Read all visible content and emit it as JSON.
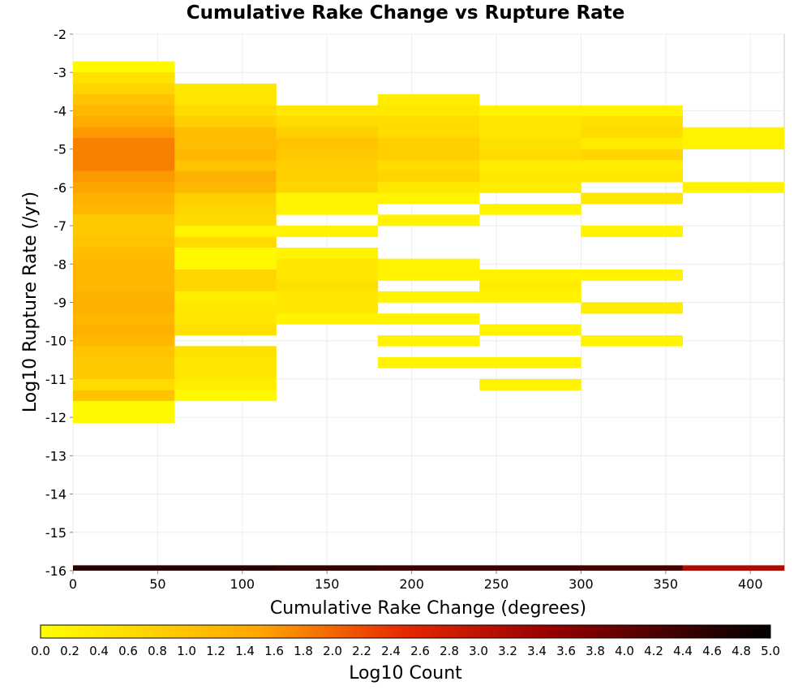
{
  "chart_data": {
    "type": "heatmap",
    "title": "Cumulative Rake Change vs Rupture Rate",
    "xlabel": "Cumulative Rake Change (degrees)",
    "ylabel": "Log10 Rupture Rate (/yr)",
    "xlim": [
      0,
      420
    ],
    "ylim": [
      -16,
      -2
    ],
    "x_ticks": [
      0,
      50,
      100,
      150,
      200,
      250,
      300,
      350,
      400
    ],
    "y_ticks": [
      -2,
      -3,
      -4,
      -5,
      -6,
      -7,
      -8,
      -9,
      -10,
      -11,
      -12,
      -13,
      -14,
      -15,
      -16
    ],
    "grid": true,
    "bin_width_x": 60,
    "bin_height_y": 0.2857,
    "colorbar": {
      "label": "Log10 Count",
      "range": [
        0.0,
        5.0
      ],
      "ticks": [
        "0.0",
        "0.2",
        "0.4",
        "0.6",
        "0.8",
        "1.0",
        "1.2",
        "1.4",
        "1.6",
        "1.8",
        "2.0",
        "2.2",
        "2.4",
        "2.6",
        "2.8",
        "3.0",
        "3.2",
        "3.4",
        "3.6",
        "3.8",
        "4.0",
        "4.2",
        "4.4",
        "4.6",
        "4.8",
        "5.0"
      ],
      "colormap": "yellow-orange-red-black"
    },
    "columns": [
      {
        "x_range": [
          0,
          60
        ],
        "cells": [
          {
            "y": [
              -3.0,
              -2.71
            ],
            "value": 0.1
          },
          {
            "y": [
              -3.29,
              -3.0
            ],
            "value": 0.5
          },
          {
            "y": [
              -3.57,
              -3.29
            ],
            "value": 0.7
          },
          {
            "y": [
              -3.86,
              -3.57
            ],
            "value": 1.0
          },
          {
            "y": [
              -4.14,
              -3.86
            ],
            "value": 1.2
          },
          {
            "y": [
              -4.43,
              -4.14
            ],
            "value": 1.4
          },
          {
            "y": [
              -4.71,
              -4.43
            ],
            "value": 1.6
          },
          {
            "y": [
              -5.0,
              -4.71
            ],
            "value": 1.8
          },
          {
            "y": [
              -5.29,
              -5.0
            ],
            "value": 1.8
          },
          {
            "y": [
              -5.57,
              -5.29
            ],
            "value": 1.8
          },
          {
            "y": [
              -5.86,
              -5.57
            ],
            "value": 1.6
          },
          {
            "y": [
              -6.14,
              -5.86
            ],
            "value": 1.5
          },
          {
            "y": [
              -6.43,
              -6.14
            ],
            "value": 1.3
          },
          {
            "y": [
              -6.71,
              -6.43
            ],
            "value": 1.2
          },
          {
            "y": [
              -7.0,
              -6.71
            ],
            "value": 0.9
          },
          {
            "y": [
              -7.29,
              -7.0
            ],
            "value": 0.9
          },
          {
            "y": [
              -7.57,
              -7.29
            ],
            "value": 1.0
          },
          {
            "y": [
              -7.86,
              -7.57
            ],
            "value": 1.1
          },
          {
            "y": [
              -8.14,
              -7.86
            ],
            "value": 1.2
          },
          {
            "y": [
              -8.43,
              -8.14
            ],
            "value": 1.2
          },
          {
            "y": [
              -8.71,
              -8.43
            ],
            "value": 1.2
          },
          {
            "y": [
              -9.0,
              -8.71
            ],
            "value": 1.3
          },
          {
            "y": [
              -9.29,
              -9.0
            ],
            "value": 1.3
          },
          {
            "y": [
              -9.57,
              -9.29
            ],
            "value": 1.2
          },
          {
            "y": [
              -9.86,
              -9.57
            ],
            "value": 1.3
          },
          {
            "y": [
              -10.14,
              -9.86
            ],
            "value": 1.2
          },
          {
            "y": [
              -10.43,
              -10.14
            ],
            "value": 1.0
          },
          {
            "y": [
              -10.71,
              -10.43
            ],
            "value": 0.9
          },
          {
            "y": [
              -11.0,
              -10.71
            ],
            "value": 0.9
          },
          {
            "y": [
              -11.29,
              -11.0
            ],
            "value": 0.6
          },
          {
            "y": [
              -11.57,
              -11.29
            ],
            "value": 1.0
          },
          {
            "y": [
              -11.86,
              -11.57
            ],
            "value": 0.1
          },
          {
            "y": [
              -12.14,
              -11.86
            ],
            "value": 0.1
          }
        ]
      },
      {
        "x_range": [
          60,
          120
        ],
        "cells": [
          {
            "y": [
              -3.57,
              -3.29
            ],
            "value": 0.4
          },
          {
            "y": [
              -3.86,
              -3.57
            ],
            "value": 0.4
          },
          {
            "y": [
              -4.14,
              -3.86
            ],
            "value": 0.6
          },
          {
            "y": [
              -4.43,
              -4.14
            ],
            "value": 0.8
          },
          {
            "y": [
              -4.71,
              -4.43
            ],
            "value": 1.1
          },
          {
            "y": [
              -5.0,
              -4.71
            ],
            "value": 1.1
          },
          {
            "y": [
              -5.29,
              -5.0
            ],
            "value": 1.2
          },
          {
            "y": [
              -5.57,
              -5.29
            ],
            "value": 1.0
          },
          {
            "y": [
              -5.86,
              -5.57
            ],
            "value": 1.3
          },
          {
            "y": [
              -6.14,
              -5.86
            ],
            "value": 1.2
          },
          {
            "y": [
              -6.43,
              -6.14
            ],
            "value": 0.8
          },
          {
            "y": [
              -6.71,
              -6.43
            ],
            "value": 0.7
          },
          {
            "y": [
              -7.0,
              -6.71
            ],
            "value": 0.6
          },
          {
            "y": [
              -7.29,
              -7.0
            ],
            "value": 0.2
          },
          {
            "y": [
              -7.57,
              -7.29
            ],
            "value": 0.6
          },
          {
            "y": [
              -7.86,
              -7.57
            ],
            "value": 0.1
          },
          {
            "y": [
              -8.14,
              -7.86
            ],
            "value": 0.1
          },
          {
            "y": [
              -8.43,
              -8.14
            ],
            "value": 0.7
          },
          {
            "y": [
              -8.71,
              -8.43
            ],
            "value": 0.7
          },
          {
            "y": [
              -9.0,
              -8.71
            ],
            "value": 0.3
          },
          {
            "y": [
              -9.29,
              -9.0
            ],
            "value": 0.4
          },
          {
            "y": [
              -9.57,
              -9.29
            ],
            "value": 0.4
          },
          {
            "y": [
              -9.86,
              -9.57
            ],
            "value": 0.5
          },
          {
            "y": [
              -10.43,
              -10.14
            ],
            "value": 0.5
          },
          {
            "y": [
              -10.71,
              -10.43
            ],
            "value": 0.4
          },
          {
            "y": [
              -11.0,
              -10.71
            ],
            "value": 0.4
          },
          {
            "y": [
              -11.29,
              -11.0
            ],
            "value": 0.3
          },
          {
            "y": [
              -11.57,
              -11.29
            ],
            "value": 0.1
          }
        ]
      },
      {
        "x_range": [
          120,
          180
        ],
        "cells": [
          {
            "y": [
              -4.14,
              -3.86
            ],
            "value": 0.4
          },
          {
            "y": [
              -4.43,
              -4.14
            ],
            "value": 0.6
          },
          {
            "y": [
              -4.71,
              -4.43
            ],
            "value": 0.8
          },
          {
            "y": [
              -5.0,
              -4.71
            ],
            "value": 1.0
          },
          {
            "y": [
              -5.29,
              -5.0
            ],
            "value": 0.9
          },
          {
            "y": [
              -5.57,
              -5.29
            ],
            "value": 0.8
          },
          {
            "y": [
              -5.86,
              -5.57
            ],
            "value": 0.8
          },
          {
            "y": [
              -6.14,
              -5.86
            ],
            "value": 0.7
          },
          {
            "y": [
              -6.43,
              -6.14
            ],
            "value": 0.2
          },
          {
            "y": [
              -6.71,
              -6.43
            ],
            "value": 0.2
          },
          {
            "y": [
              -7.29,
              -7.0
            ],
            "value": 0.2
          },
          {
            "y": [
              -7.86,
              -7.57
            ],
            "value": 0.2
          },
          {
            "y": [
              -8.14,
              -7.86
            ],
            "value": 0.4
          },
          {
            "y": [
              -8.43,
              -8.14
            ],
            "value": 0.4
          },
          {
            "y": [
              -8.71,
              -8.43
            ],
            "value": 0.5
          },
          {
            "y": [
              -9.0,
              -8.71
            ],
            "value": 0.4
          },
          {
            "y": [
              -9.29,
              -9.0
            ],
            "value": 0.4
          },
          {
            "y": [
              -9.57,
              -9.29
            ],
            "value": 0.2
          }
        ]
      },
      {
        "x_range": [
          180,
          240
        ],
        "cells": [
          {
            "y": [
              -3.86,
              -3.57
            ],
            "value": 0.3
          },
          {
            "y": [
              -4.14,
              -3.86
            ],
            "value": 0.4
          },
          {
            "y": [
              -4.43,
              -4.14
            ],
            "value": 0.6
          },
          {
            "y": [
              -4.71,
              -4.43
            ],
            "value": 0.6
          },
          {
            "y": [
              -5.0,
              -4.71
            ],
            "value": 0.8
          },
          {
            "y": [
              -5.29,
              -5.0
            ],
            "value": 0.8
          },
          {
            "y": [
              -5.57,
              -5.29
            ],
            "value": 0.6
          },
          {
            "y": [
              -5.86,
              -5.57
            ],
            "value": 0.7
          },
          {
            "y": [
              -6.14,
              -5.86
            ],
            "value": 0.4
          },
          {
            "y": [
              -6.43,
              -6.14
            ],
            "value": 0.2
          },
          {
            "y": [
              -7.0,
              -6.71
            ],
            "value": 0.2
          },
          {
            "y": [
              -8.14,
              -7.86
            ],
            "value": 0.2
          },
          {
            "y": [
              -8.43,
              -8.14
            ],
            "value": 0.2
          },
          {
            "y": [
              -9.0,
              -8.71
            ],
            "value": 0.2
          },
          {
            "y": [
              -9.57,
              -9.29
            ],
            "value": 0.2
          },
          {
            "y": [
              -10.14,
              -9.86
            ],
            "value": 0.2
          },
          {
            "y": [
              -10.71,
              -10.43
            ],
            "value": 0.2
          }
        ]
      },
      {
        "x_range": [
          240,
          300
        ],
        "cells": [
          {
            "y": [
              -4.14,
              -3.86
            ],
            "value": 0.2
          },
          {
            "y": [
              -4.43,
              -4.14
            ],
            "value": 0.4
          },
          {
            "y": [
              -4.71,
              -4.43
            ],
            "value": 0.4
          },
          {
            "y": [
              -5.0,
              -4.71
            ],
            "value": 0.5
          },
          {
            "y": [
              -5.29,
              -5.0
            ],
            "value": 0.6
          },
          {
            "y": [
              -5.57,
              -5.29
            ],
            "value": 0.3
          },
          {
            "y": [
              -5.86,
              -5.57
            ],
            "value": 0.4
          },
          {
            "y": [
              -6.14,
              -5.86
            ],
            "value": 0.3
          },
          {
            "y": [
              -6.71,
              -6.43
            ],
            "value": 0.2
          },
          {
            "y": [
              -8.43,
              -8.14
            ],
            "value": 0.2
          },
          {
            "y": [
              -8.71,
              -8.43
            ],
            "value": 0.3
          },
          {
            "y": [
              -9.0,
              -8.71
            ],
            "value": 0.2
          },
          {
            "y": [
              -9.86,
              -9.57
            ],
            "value": 0.2
          },
          {
            "y": [
              -10.71,
              -10.43
            ],
            "value": 0.2
          },
          {
            "y": [
              -11.29,
              -11.0
            ],
            "value": 0.2
          }
        ]
      },
      {
        "x_range": [
          300,
          360
        ],
        "cells": [
          {
            "y": [
              -4.14,
              -3.86
            ],
            "value": 0.2
          },
          {
            "y": [
              -4.43,
              -4.14
            ],
            "value": 0.5
          },
          {
            "y": [
              -4.71,
              -4.43
            ],
            "value": 0.6
          },
          {
            "y": [
              -5.0,
              -4.71
            ],
            "value": 0.3
          },
          {
            "y": [
              -5.29,
              -5.0
            ],
            "value": 0.7
          },
          {
            "y": [
              -5.57,
              -5.29
            ],
            "value": 0.3
          },
          {
            "y": [
              -5.86,
              -5.57
            ],
            "value": 0.4
          },
          {
            "y": [
              -6.43,
              -6.14
            ],
            "value": 0.4
          },
          {
            "y": [
              -7.29,
              -7.0
            ],
            "value": 0.2
          },
          {
            "y": [
              -8.43,
              -8.14
            ],
            "value": 0.2
          },
          {
            "y": [
              -9.29,
              -9.0
            ],
            "value": 0.3
          },
          {
            "y": [
              -10.14,
              -9.86
            ],
            "value": 0.2
          }
        ]
      },
      {
        "x_range": [
          360,
          420
        ],
        "cells": [
          {
            "y": [
              -4.71,
              -4.43
            ],
            "value": 0.2
          },
          {
            "y": [
              -5.0,
              -4.71
            ],
            "value": 0.2
          },
          {
            "y": [
              -6.14,
              -5.86
            ],
            "value": 0.2
          }
        ]
      }
    ],
    "bottom_strip": {
      "y": [
        -16.0,
        -15.86
      ],
      "segments": [
        {
          "x": [
            0,
            60
          ],
          "value": 4.6
        },
        {
          "x": [
            60,
            120
          ],
          "value": 4.6
        },
        {
          "x": [
            120,
            180
          ],
          "value": 4.5
        },
        {
          "x": [
            180,
            240
          ],
          "value": 4.4
        },
        {
          "x": [
            240,
            300
          ],
          "value": 4.4
        },
        {
          "x": [
            300,
            360
          ],
          "value": 4.3
        },
        {
          "x": [
            360,
            420
          ],
          "value": 3.2
        }
      ]
    }
  }
}
